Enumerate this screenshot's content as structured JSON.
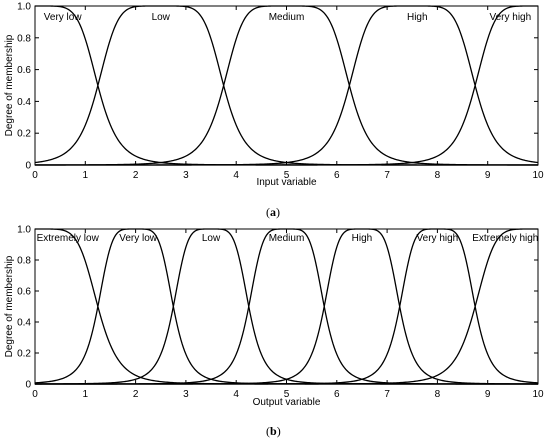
{
  "chart_data": [
    {
      "type": "line",
      "caption": "a",
      "xlabel": "Input variable",
      "ylabel": "Degree of membership",
      "xlim": [
        0,
        10
      ],
      "ylim": [
        0,
        1
      ],
      "xticks": [
        "0",
        "1",
        "2",
        "3",
        "4",
        "5",
        "6",
        "7",
        "8",
        "9",
        "10"
      ],
      "yticks": [
        "0",
        "0.2",
        "0.4",
        "0.6",
        "0.8",
        "1.0"
      ],
      "grid": false,
      "series": [
        {
          "name": "Very low",
          "shape": "gbell",
          "a": 1.25,
          "b": 3,
          "c": 0,
          "color": "#000000"
        },
        {
          "name": "Low",
          "shape": "gbell",
          "a": 1.25,
          "b": 3,
          "c": 2.5,
          "color": "#000000"
        },
        {
          "name": "Medium",
          "shape": "gbell",
          "a": 1.25,
          "b": 3,
          "c": 5,
          "color": "#000000"
        },
        {
          "name": "High",
          "shape": "gbell",
          "a": 1.25,
          "b": 3,
          "c": 7.5,
          "color": "#000000"
        },
        {
          "name": "Very high",
          "shape": "gbell",
          "a": 1.25,
          "b": 3,
          "c": 10,
          "color": "#000000"
        }
      ],
      "labels": [
        {
          "text": "Very low",
          "x": 0.55
        },
        {
          "text": "Low",
          "x": 2.5
        },
        {
          "text": "Medium",
          "x": 5.0
        },
        {
          "text": "High",
          "x": 7.6
        },
        {
          "text": "Very high",
          "x": 9.45
        }
      ]
    },
    {
      "type": "line",
      "caption": "b",
      "xlabel": "Output variable",
      "ylabel": "Degree of membership",
      "xlim": [
        0,
        10
      ],
      "ylim": [
        0,
        1
      ],
      "xticks": [
        "0",
        "1",
        "2",
        "3",
        "4",
        "5",
        "6",
        "7",
        "8",
        "9",
        "10"
      ],
      "yticks": [
        "0",
        "0.2",
        "0.4",
        "0.6",
        "0.8",
        "1.0"
      ],
      "grid": false,
      "series": [
        {
          "name": "Extremely low",
          "shape": "gbell",
          "a": 1.25,
          "b": 3,
          "c": 0,
          "color": "#000000"
        },
        {
          "name": "Very low",
          "shape": "gbell",
          "a": 0.75,
          "b": 2.5,
          "c": 2.0,
          "color": "#000000"
        },
        {
          "name": "Low",
          "shape": "gbell",
          "a": 0.75,
          "b": 2.5,
          "c": 3.5,
          "color": "#000000"
        },
        {
          "name": "Medium",
          "shape": "gbell",
          "a": 0.75,
          "b": 2.5,
          "c": 5.0,
          "color": "#000000"
        },
        {
          "name": "High",
          "shape": "gbell",
          "a": 0.75,
          "b": 2.5,
          "c": 6.5,
          "color": "#000000"
        },
        {
          "name": "Very high",
          "shape": "gbell",
          "a": 0.75,
          "b": 2.5,
          "c": 8.0,
          "color": "#000000"
        },
        {
          "name": "Extremely high",
          "shape": "gbell",
          "a": 1.25,
          "b": 3,
          "c": 10,
          "color": "#000000"
        }
      ],
      "labels": [
        {
          "text": "Extremely low",
          "x": 0.65
        },
        {
          "text": "Very low",
          "x": 2.05
        },
        {
          "text": "Low",
          "x": 3.5
        },
        {
          "text": "Medium",
          "x": 5.0
        },
        {
          "text": "High",
          "x": 6.5
        },
        {
          "text": "Very high",
          "x": 8.0
        },
        {
          "text": "Extremely high",
          "x": 9.35
        }
      ]
    }
  ]
}
